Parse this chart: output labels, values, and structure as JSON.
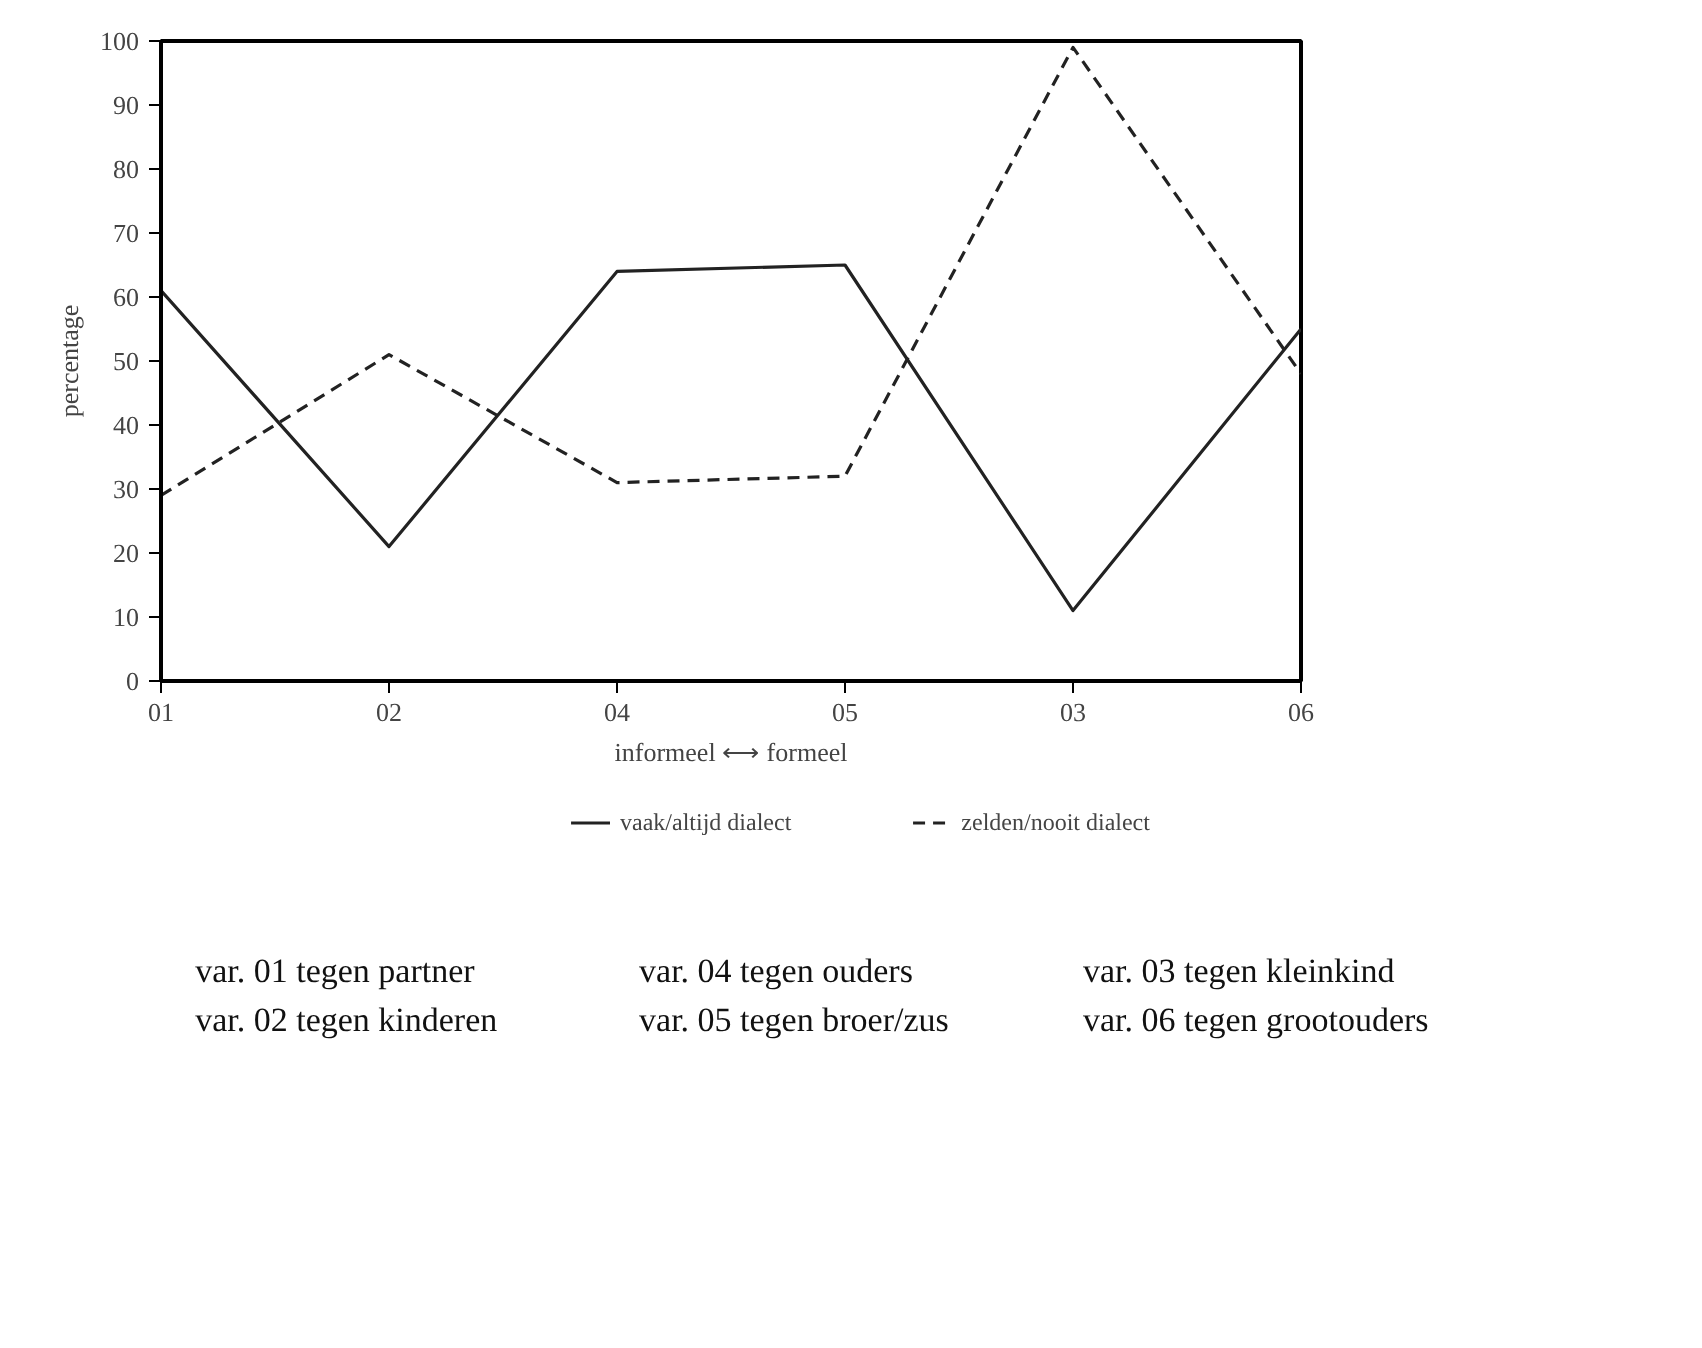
{
  "chart_data": {
    "type": "line",
    "ylabel": "percentage",
    "xlabel": "informeel ⟷ formeel",
    "categories": [
      "01",
      "02",
      "04",
      "05",
      "03",
      "06"
    ],
    "series": [
      {
        "name": "vaak/altijd dialect",
        "color": "#222222",
        "line_style": "solid",
        "values": [
          61,
          21,
          64,
          65,
          11,
          55
        ]
      },
      {
        "name": "zelden/nooit dialect",
        "color": "#222222",
        "line_style": "dashed",
        "values": [
          29,
          51,
          31,
          32,
          99,
          48
        ]
      }
    ],
    "ylim": [
      0,
      100
    ],
    "yticks": [
      0,
      10,
      20,
      30,
      40,
      50,
      60,
      70,
      80,
      90,
      100
    ],
    "grid": false,
    "legend": "bottom",
    "marker": "none",
    "annotations": [
      "var. 01 tegen partner",
      "var. 02 tegen kinderen",
      "var. 04 tegen ouders",
      "var. 05 tegen broer/zus",
      "var. 03 tegen kleinkind",
      "var. 06 tegen grootouders"
    ]
  }
}
